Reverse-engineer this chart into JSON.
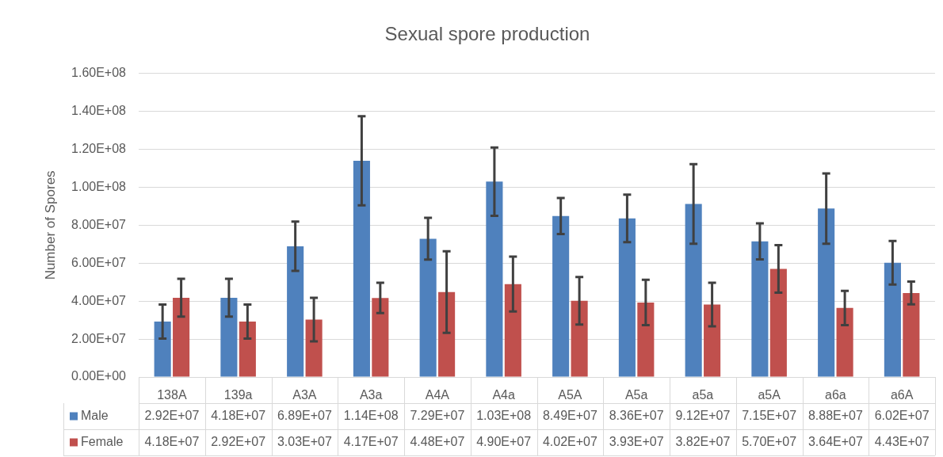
{
  "chart_data": {
    "type": "bar",
    "title": "Sexual spore production",
    "ylabel": "Number of Spores",
    "categories": [
      "138A",
      "139a",
      "A3A",
      "A3a",
      "A4A",
      "A4a",
      "A5A",
      "A5a",
      "a5a",
      "a5A",
      "a6a",
      "a6A"
    ],
    "series": [
      {
        "name": "Male",
        "color": "#4f81bd",
        "values": [
          29200000,
          41800000,
          68900000,
          114000000,
          72900000,
          103000000,
          84900000,
          83600000,
          91200000,
          71500000,
          88800000,
          60200000
        ],
        "errors": [
          9000000,
          10000000,
          13000000,
          23500000,
          11000000,
          18000000,
          9500000,
          12500000,
          21000000,
          9500000,
          18500000,
          11500000
        ],
        "value_labels": [
          "2.92E+07",
          "4.18E+07",
          "6.89E+07",
          "1.14E+08",
          "7.29E+07",
          "1.03E+08",
          "8.49E+07",
          "8.36E+07",
          "9.12E+07",
          "7.15E+07",
          "8.88E+07",
          "6.02E+07"
        ]
      },
      {
        "name": "Female",
        "color": "#c0504d",
        "values": [
          41800000,
          29200000,
          30300000,
          41700000,
          44800000,
          49000000,
          40200000,
          39300000,
          38200000,
          57000000,
          36400000,
          44300000
        ],
        "errors": [
          10000000,
          9000000,
          11500000,
          8000000,
          21500000,
          14500000,
          12500000,
          12000000,
          11500000,
          12500000,
          9000000,
          6000000
        ],
        "value_labels": [
          "4.18E+07",
          "2.92E+07",
          "3.03E+07",
          "4.17E+07",
          "4.48E+07",
          "4.90E+07",
          "4.02E+07",
          "3.93E+07",
          "3.82E+07",
          "5.70E+07",
          "3.64E+07",
          "4.43E+07"
        ]
      }
    ],
    "ylim": [
      0,
      160000000
    ],
    "yticks": [
      {
        "value": 0,
        "label": "0.00E+00"
      },
      {
        "value": 20000000,
        "label": "2.00E+07"
      },
      {
        "value": 40000000,
        "label": "4.00E+07"
      },
      {
        "value": 60000000,
        "label": "6.00E+07"
      },
      {
        "value": 80000000,
        "label": "8.00E+07"
      },
      {
        "value": 100000000,
        "label": "1.00E+08"
      },
      {
        "value": 120000000,
        "label": "1.20E+08"
      },
      {
        "value": 140000000,
        "label": "1.40E+08"
      },
      {
        "value": 160000000,
        "label": "1.60E+08"
      }
    ],
    "grid": "y",
    "legend": "bottom"
  }
}
